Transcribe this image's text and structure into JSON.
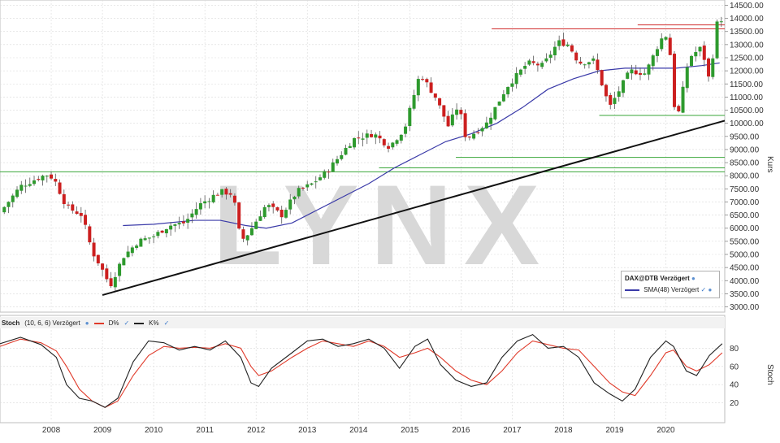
{
  "instrument": "DAX@DTB Verzögert",
  "main_panel": {
    "y_axis_label": "Kurs",
    "y_ticks": [
      "3000.00",
      "3500.00",
      "4000.00",
      "4500.00",
      "5000.00",
      "5500.00",
      "6000.00",
      "6500.00",
      "7000.00",
      "7500.00",
      "8000.00",
      "8500.00",
      "9000.00",
      "9500.00",
      "10000.00",
      "10500.00",
      "11000.00",
      "11500.00",
      "12000.00",
      "12500.00",
      "13000.00",
      "13500.00",
      "14000.00",
      "14500.00"
    ],
    "watermark": "LYNX",
    "legend": {
      "title": "DAX@DTB Verzögert",
      "series_label": "SMA(48) Verzögert"
    }
  },
  "stoch_panel": {
    "title": "Stoch",
    "params": "(10, 6, 6) Verzögert",
    "d_label": "D%",
    "k_label": "K%",
    "y_axis_label": "Stoch",
    "y_ticks": [
      "20",
      "40",
      "60",
      "80"
    ]
  },
  "x_ticks": [
    "2008",
    "2009",
    "2010",
    "2011",
    "2012",
    "2013",
    "2014",
    "2015",
    "2016",
    "2017",
    "2018",
    "2019",
    "2020"
  ],
  "colors": {
    "up": "#2e9a2e",
    "down": "#cc1f1f",
    "sma": "#3a3aa8",
    "trendline": "#111111",
    "support": "#3aa63a",
    "resistance": "#d03030",
    "d_line": "#e03a2a",
    "k_line": "#222222",
    "grid": "#d9d9d9",
    "watermark": "#d8d8d8"
  },
  "chart_data": [
    {
      "type": "candlestick",
      "title": "DAX@DTB Verzögert",
      "ylabel": "Kurs",
      "ylim": [
        2800,
        14700
      ],
      "x_range": [
        2007.0,
        2021.15
      ],
      "grid": true,
      "legend_position": "bottom-right",
      "close_path": [
        [
          2007.0,
          6600
        ],
        [
          2007.4,
          7600
        ],
        [
          2007.9,
          8050
        ],
        [
          2008.05,
          7900
        ],
        [
          2008.3,
          6800
        ],
        [
          2008.6,
          6500
        ],
        [
          2008.8,
          5100
        ],
        [
          2008.95,
          4600
        ],
        [
          2009.15,
          3800
        ],
        [
          2009.4,
          4900
        ],
        [
          2009.7,
          5500
        ],
        [
          2010.0,
          5700
        ],
        [
          2010.3,
          6100
        ],
        [
          2010.6,
          6200
        ],
        [
          2010.9,
          6900
        ],
        [
          2011.3,
          7400
        ],
        [
          2011.55,
          7300
        ],
        [
          2011.7,
          5500
        ],
        [
          2011.85,
          5800
        ],
        [
          2012.2,
          6900
        ],
        [
          2012.5,
          6500
        ],
        [
          2012.8,
          7400
        ],
        [
          2013.1,
          7700
        ],
        [
          2013.4,
          8200
        ],
        [
          2013.9,
          9400
        ],
        [
          2014.3,
          9600
        ],
        [
          2014.6,
          9100
        ],
        [
          2014.9,
          9800
        ],
        [
          2015.2,
          11900
        ],
        [
          2015.5,
          11000
        ],
        [
          2015.75,
          9900
        ],
        [
          2015.95,
          10700
        ],
        [
          2016.1,
          9400
        ],
        [
          2016.5,
          10000
        ],
        [
          2016.9,
          11400
        ],
        [
          2017.3,
          12300
        ],
        [
          2017.6,
          12200
        ],
        [
          2017.9,
          13100
        ],
        [
          2018.1,
          13000
        ],
        [
          2018.3,
          12300
        ],
        [
          2018.6,
          12400
        ],
        [
          2018.9,
          10600
        ],
        [
          2019.3,
          12000
        ],
        [
          2019.6,
          11900
        ],
        [
          2019.9,
          13200
        ],
        [
          2020.05,
          13400
        ],
        [
          2020.2,
          9900
        ],
        [
          2020.45,
          12500
        ],
        [
          2020.7,
          12900
        ],
        [
          2020.85,
          11600
        ],
        [
          2021.0,
          13800
        ],
        [
          2021.1,
          14000
        ]
      ],
      "sma48_path": [
        [
          2009.4,
          6100
        ],
        [
          2010.0,
          6150
        ],
        [
          2010.8,
          6300
        ],
        [
          2011.3,
          6300
        ],
        [
          2011.8,
          6100
        ],
        [
          2012.2,
          6000
        ],
        [
          2012.7,
          6200
        ],
        [
          2013.2,
          6700
        ],
        [
          2013.7,
          7200
        ],
        [
          2014.2,
          7700
        ],
        [
          2014.7,
          8300
        ],
        [
          2015.2,
          8800
        ],
        [
          2015.7,
          9300
        ],
        [
          2016.2,
          9600
        ],
        [
          2016.7,
          10000
        ],
        [
          2017.2,
          10600
        ],
        [
          2017.7,
          11300
        ],
        [
          2018.2,
          11700
        ],
        [
          2018.7,
          12000
        ],
        [
          2019.2,
          12100
        ],
        [
          2019.7,
          12100
        ],
        [
          2020.2,
          12100
        ],
        [
          2020.7,
          12200
        ],
        [
          2021.05,
          12300
        ]
      ],
      "trendline": {
        "from": [
          2009.0,
          3450
        ],
        "to": [
          2021.15,
          10100
        ]
      },
      "support_lines": [
        {
          "y": 8150,
          "x_from": 2007.0,
          "x_to": 2021.15
        },
        {
          "y": 8300,
          "x_from": 2014.4,
          "x_to": 2021.15
        },
        {
          "y": 8700,
          "x_from": 2015.9,
          "x_to": 2021.15
        },
        {
          "y": 10300,
          "x_from": 2018.7,
          "x_to": 2021.15
        }
      ],
      "resistance_lines": [
        {
          "y": 13600,
          "x_from": 2016.6,
          "x_to": 2021.15
        },
        {
          "y": 13750,
          "x_from": 2019.45,
          "x_to": 2021.15
        }
      ]
    },
    {
      "type": "line",
      "title": "Stoch",
      "ylabel": "Stoch",
      "ylim": [
        0,
        100
      ],
      "x_range": [
        2007.0,
        2021.15
      ],
      "series": [
        {
          "name": "D%",
          "points": [
            [
              2007.0,
              82
            ],
            [
              2007.4,
              90
            ],
            [
              2007.8,
              86
            ],
            [
              2008.1,
              77
            ],
            [
              2008.3,
              60
            ],
            [
              2008.55,
              35
            ],
            [
              2008.8,
              22
            ],
            [
              2009.05,
              15
            ],
            [
              2009.3,
              22
            ],
            [
              2009.6,
              50
            ],
            [
              2009.9,
              72
            ],
            [
              2010.2,
              82
            ],
            [
              2010.5,
              80
            ],
            [
              2010.8,
              81
            ],
            [
              2011.1,
              80
            ],
            [
              2011.4,
              85
            ],
            [
              2011.7,
              80
            ],
            [
              2011.9,
              60
            ],
            [
              2012.05,
              50
            ],
            [
              2012.3,
              55
            ],
            [
              2012.7,
              70
            ],
            [
              2013.0,
              80
            ],
            [
              2013.3,
              88
            ],
            [
              2013.6,
              85
            ],
            [
              2013.9,
              82
            ],
            [
              2014.2,
              88
            ],
            [
              2014.5,
              82
            ],
            [
              2014.8,
              70
            ],
            [
              2015.1,
              75
            ],
            [
              2015.35,
              80
            ],
            [
              2015.6,
              70
            ],
            [
              2015.9,
              55
            ],
            [
              2016.2,
              45
            ],
            [
              2016.5,
              40
            ],
            [
              2016.8,
              55
            ],
            [
              2017.1,
              75
            ],
            [
              2017.4,
              88
            ],
            [
              2017.7,
              84
            ],
            [
              2018.0,
              80
            ],
            [
              2018.3,
              78
            ],
            [
              2018.6,
              60
            ],
            [
              2018.9,
              42
            ],
            [
              2019.15,
              32
            ],
            [
              2019.4,
              28
            ],
            [
              2019.7,
              50
            ],
            [
              2020.0,
              75
            ],
            [
              2020.15,
              78
            ],
            [
              2020.4,
              60
            ],
            [
              2020.6,
              55
            ],
            [
              2020.85,
              62
            ],
            [
              2021.1,
              75
            ]
          ]
        },
        {
          "name": "K%",
          "points": [
            [
              2007.0,
              85
            ],
            [
              2007.4,
              92
            ],
            [
              2007.8,
              84
            ],
            [
              2008.1,
              70
            ],
            [
              2008.3,
              40
            ],
            [
              2008.55,
              25
            ],
            [
              2008.8,
              22
            ],
            [
              2009.05,
              15
            ],
            [
              2009.3,
              25
            ],
            [
              2009.6,
              65
            ],
            [
              2009.9,
              88
            ],
            [
              2010.2,
              86
            ],
            [
              2010.5,
              78
            ],
            [
              2010.8,
              82
            ],
            [
              2011.1,
              78
            ],
            [
              2011.4,
              88
            ],
            [
              2011.7,
              70
            ],
            [
              2011.9,
              42
            ],
            [
              2012.05,
              38
            ],
            [
              2012.3,
              58
            ],
            [
              2012.7,
              75
            ],
            [
              2013.0,
              88
            ],
            [
              2013.3,
              90
            ],
            [
              2013.6,
              82
            ],
            [
              2013.9,
              85
            ],
            [
              2014.2,
              90
            ],
            [
              2014.5,
              80
            ],
            [
              2014.8,
              58
            ],
            [
              2015.1,
              82
            ],
            [
              2015.35,
              90
            ],
            [
              2015.6,
              62
            ],
            [
              2015.9,
              45
            ],
            [
              2016.2,
              38
            ],
            [
              2016.5,
              42
            ],
            [
              2016.8,
              70
            ],
            [
              2017.1,
              88
            ],
            [
              2017.4,
              95
            ],
            [
              2017.7,
              80
            ],
            [
              2018.0,
              82
            ],
            [
              2018.3,
              70
            ],
            [
              2018.6,
              42
            ],
            [
              2018.9,
              30
            ],
            [
              2019.15,
              22
            ],
            [
              2019.4,
              35
            ],
            [
              2019.7,
              70
            ],
            [
              2020.0,
              88
            ],
            [
              2020.15,
              82
            ],
            [
              2020.4,
              55
            ],
            [
              2020.6,
              50
            ],
            [
              2020.85,
              72
            ],
            [
              2021.1,
              85
            ]
          ]
        }
      ]
    }
  ]
}
